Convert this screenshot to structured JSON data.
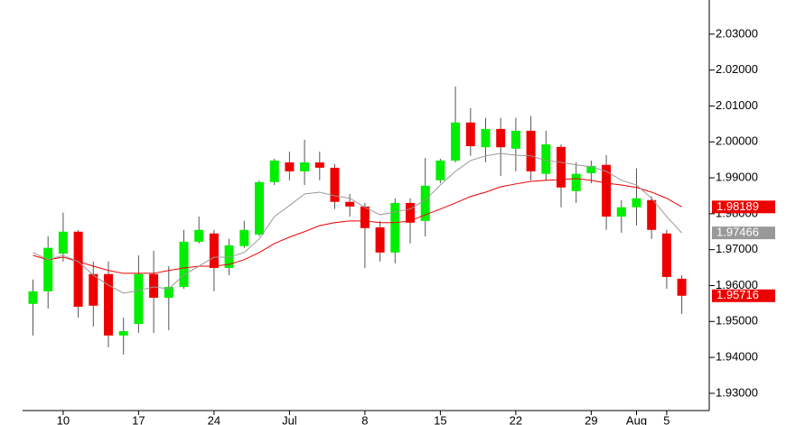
{
  "chart_data": {
    "type": "candlestick",
    "categories": [
      null,
      null,
      "10",
      null,
      null,
      null,
      null,
      "17",
      null,
      null,
      null,
      null,
      "24",
      null,
      null,
      null,
      null,
      "Jul",
      null,
      null,
      null,
      null,
      "8",
      null,
      null,
      null,
      null,
      "15",
      null,
      null,
      null,
      null,
      "22",
      null,
      null,
      null,
      null,
      "29",
      null,
      null,
      "Aug",
      null,
      "5",
      null
    ],
    "open": [
      1.9549,
      1.9584,
      1.9689,
      1.975,
      1.9632,
      1.9632,
      1.9461,
      1.9493,
      1.9632,
      1.9566,
      1.9596,
      1.9722,
      1.9745,
      1.9649,
      1.971,
      1.9742,
      1.9888,
      1.9943,
      1.9918,
      1.9943,
      1.9928,
      1.9833,
      1.982,
      1.9762,
      1.9692,
      1.983,
      1.978,
      1.9893,
      1.9948,
      2.0054,
      1.9985,
      2.0036,
      1.9981,
      2.0031,
      1.9911,
      1.9986,
      1.9863,
      1.9913,
      1.9936,
      1.9792,
      1.9818,
      1.9838,
      1.9745,
      1.9619
    ],
    "high": [
      1.9617,
      1.9737,
      1.9803,
      1.9755,
      1.9667,
      1.9667,
      1.9511,
      1.9684,
      1.9697,
      1.9654,
      1.9755,
      1.9792,
      1.9755,
      1.973,
      1.978,
      1.9893,
      1.9953,
      1.9973,
      2.0006,
      1.9973,
      1.9938,
      1.9855,
      1.983,
      1.978,
      1.9843,
      1.9843,
      1.9955,
      1.9953,
      2.0154,
      2.0094,
      2.0067,
      2.0067,
      2.0067,
      2.0072,
      2.0031,
      1.9993,
      1.9943,
      1.9948,
      1.9963,
      1.9838,
      1.9926,
      1.9848,
      1.9755,
      1.9629
    ],
    "low": [
      1.9461,
      1.9536,
      1.9667,
      1.9511,
      1.9486,
      1.9428,
      1.9408,
      1.9468,
      1.9468,
      1.9476,
      1.9591,
      1.9717,
      1.9584,
      1.9629,
      1.9705,
      1.9737,
      1.988,
      1.9893,
      1.988,
      1.9893,
      1.9813,
      1.9792,
      1.9649,
      1.9667,
      1.9662,
      1.9717,
      1.9737,
      1.9885,
      1.9943,
      1.9961,
      1.9943,
      1.9905,
      1.9918,
      1.9893,
      1.9893,
      1.9818,
      1.983,
      1.9885,
      1.9755,
      1.9747,
      1.9767,
      1.973,
      1.9591,
      1.9521
    ],
    "close": [
      1.9584,
      1.9705,
      1.975,
      1.9541,
      1.9544,
      1.9461,
      1.9473,
      1.9632,
      1.9566,
      1.9596,
      1.9722,
      1.9755,
      1.9649,
      1.9712,
      1.9755,
      1.9888,
      1.9948,
      1.9918,
      1.9943,
      1.9928,
      1.9833,
      1.982,
      1.976,
      1.9692,
      1.983,
      1.9775,
      1.9878,
      1.9948,
      2.0054,
      1.9988,
      2.0036,
      1.9985,
      2.0031,
      1.9918,
      1.9993,
      1.9873,
      1.9911,
      1.9933,
      1.9792,
      1.9818,
      1.9843,
      1.9755,
      1.9624,
      1.95716
    ],
    "up_color": "#00ee00",
    "down_color": "#ee0000",
    "series": [
      {
        "color": "#ee0000",
        "values": [
          1.9684,
          1.9672,
          1.9679,
          1.9667,
          1.9654,
          1.9642,
          1.9634,
          1.9634,
          1.9634,
          1.9642,
          1.9649,
          1.9654,
          1.9654,
          1.9659,
          1.9672,
          1.9692,
          1.9717,
          1.9735,
          1.975,
          1.9767,
          1.9775,
          1.978,
          1.978,
          1.9775,
          1.9775,
          1.978,
          1.9797,
          1.9813,
          1.983,
          1.9848,
          1.986,
          1.9875,
          1.9883,
          1.989,
          1.9893,
          1.9895,
          1.9898,
          1.9893,
          1.9885,
          1.988,
          1.9873,
          1.986,
          1.9843,
          1.98189
        ]
      },
      {
        "color": "#999999",
        "values": [
          1.9692,
          1.9672,
          1.9684,
          1.9667,
          1.9629,
          1.9601,
          1.9579,
          1.9586,
          1.9596,
          1.9591,
          1.9629,
          1.9654,
          1.9679,
          1.9679,
          1.9692,
          1.973,
          1.9792,
          1.9823,
          1.9855,
          1.986,
          1.985,
          1.9843,
          1.9818,
          1.9797,
          1.9805,
          1.9813,
          1.9838,
          1.988,
          1.9918,
          1.9948,
          1.9961,
          1.9968,
          1.9963,
          1.9961,
          1.9948,
          1.9943,
          1.9936,
          1.9931,
          1.9918,
          1.9893,
          1.988,
          1.9843,
          1.9792,
          1.97466
        ]
      }
    ],
    "last_value_labels": true,
    "ylim": [
      1.9252,
      2.0395
    ],
    "yticks": [
      {
        "value": 1.93,
        "label": "1.93000"
      },
      {
        "value": 1.94,
        "label": "1.94000"
      },
      {
        "value": 1.95,
        "label": "1.95000"
      },
      {
        "value": 1.96,
        "label": "1.96000"
      },
      {
        "value": 1.97,
        "label": "1.97000"
      },
      {
        "value": 1.98,
        "label": "1.98000"
      },
      {
        "value": 1.99,
        "label": "1.99000"
      },
      {
        "value": 2.0,
        "label": "2.00000"
      },
      {
        "value": 2.01,
        "label": "2.01000"
      },
      {
        "value": 2.02,
        "label": "2.02000"
      },
      {
        "value": 2.03,
        "label": "2.03000"
      }
    ]
  }
}
